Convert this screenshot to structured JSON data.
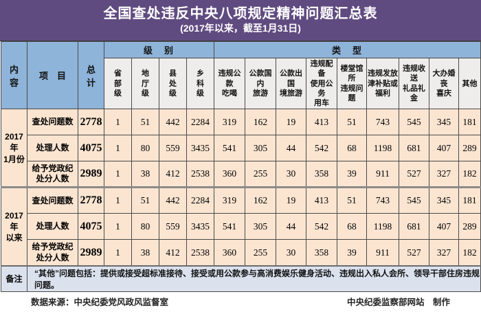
{
  "title": "全国查处违反中央八项规定精神问题汇总表",
  "subtitle": "(2017年以来，截至1月31日)",
  "colors": {
    "title_bg": "#604b80",
    "header_blue": "#8fb4d9",
    "subheader_bg": "#eeedeb",
    "data_cell_bg": "#fbe5d1",
    "side_column_bg": "#cfc3e1",
    "note_row_bg": "#dbe2ee",
    "border": "#4a4a4a"
  },
  "header": {
    "content": "内　容",
    "project": "项　目",
    "total": "总\n计",
    "level_group": "级　别",
    "type_group": "类　型",
    "levels": [
      "省\n部\n级",
      "地\n厅\n级",
      "县\n处\n级",
      "乡\n科\n级"
    ],
    "types": [
      "违规公款\n吃喝",
      "公款国内\n旅游",
      "公款出国\n境旅游",
      "违规配备\n使用公务\n用车",
      "楼堂馆所\n违规问题",
      "违规发放\n津补贴或\n福利",
      "违规收送\n礼品礼金",
      "大办婚丧\n喜庆",
      "其他"
    ]
  },
  "sections": [
    {
      "label": "2017年\n1月份",
      "rows": [
        {
          "label": "查处问题数",
          "total": "2778",
          "values": [
            "1",
            "51",
            "442",
            "2284",
            "319",
            "162",
            "19",
            "413",
            "51",
            "743",
            "545",
            "345",
            "181"
          ]
        },
        {
          "label": "处理人数",
          "total": "4075",
          "values": [
            "1",
            "80",
            "559",
            "3435",
            "541",
            "305",
            "44",
            "542",
            "68",
            "1198",
            "681",
            "407",
            "289"
          ]
        },
        {
          "label": "给予党政纪\n处分人数",
          "total": "2989",
          "values": [
            "1",
            "38",
            "412",
            "2538",
            "360",
            "255",
            "30",
            "358",
            "39",
            "911",
            "527",
            "327",
            "182"
          ]
        }
      ]
    },
    {
      "label": "2017年\n以来",
      "rows": [
        {
          "label": "查处问题数",
          "total": "2778",
          "values": [
            "1",
            "51",
            "442",
            "2284",
            "319",
            "162",
            "19",
            "413",
            "51",
            "743",
            "545",
            "345",
            "181"
          ]
        },
        {
          "label": "处理人数",
          "total": "4075",
          "values": [
            "1",
            "80",
            "559",
            "3435",
            "541",
            "305",
            "44",
            "542",
            "68",
            "1198",
            "681",
            "407",
            "289"
          ]
        },
        {
          "label": "给予党政纪\n处分人数",
          "total": "2989",
          "values": [
            "1",
            "38",
            "412",
            "2538",
            "360",
            "255",
            "30",
            "358",
            "39",
            "911",
            "527",
            "327",
            "182"
          ]
        }
      ]
    }
  ],
  "note": {
    "label": "备注",
    "text": "“其他”问题包括：提供或接受超标准接待、接受或用公款参与高消费娱乐健身活动、违规出入私人会所、领导干部住房违规问题。"
  },
  "footer": {
    "source": "数据来源：中央纪委党风政风监督室",
    "credit": "中央纪委监察部网站　制作"
  },
  "chart_data": {
    "type": "table",
    "title": "全国查处违反中央八项规定精神问题汇总表 (2017年以来，截至1月31日)",
    "column_groups": [
      "总计",
      "级别: 省部级/地厅级/县处级/乡科级",
      "类型: 违规公款吃喝/公款国内旅游/公款出国境旅游/违规配备使用公务用车/楼堂馆所违规问题/违规发放津补贴或福利/违规收送礼品礼金/大办婚丧喜庆/其他"
    ],
    "rows": [
      {
        "period": "2017年1月份",
        "metric": "查处问题数",
        "total": 2778,
        "levels": [
          1,
          51,
          442,
          2284
        ],
        "types": [
          319,
          162,
          19,
          413,
          51,
          743,
          545,
          345,
          181
        ]
      },
      {
        "period": "2017年1月份",
        "metric": "处理人数",
        "total": 4075,
        "levels": [
          1,
          80,
          559,
          3435
        ],
        "types": [
          541,
          305,
          44,
          542,
          68,
          1198,
          681,
          407,
          289
        ]
      },
      {
        "period": "2017年1月份",
        "metric": "给予党政纪处分人数",
        "total": 2989,
        "levels": [
          1,
          38,
          412,
          2538
        ],
        "types": [
          360,
          255,
          30,
          358,
          39,
          911,
          527,
          327,
          182
        ]
      },
      {
        "period": "2017年以来",
        "metric": "查处问题数",
        "total": 2778,
        "levels": [
          1,
          51,
          442,
          2284
        ],
        "types": [
          319,
          162,
          19,
          413,
          51,
          743,
          545,
          345,
          181
        ]
      },
      {
        "period": "2017年以来",
        "metric": "处理人数",
        "total": 4075,
        "levels": [
          1,
          80,
          559,
          3435
        ],
        "types": [
          541,
          305,
          44,
          542,
          68,
          1198,
          681,
          407,
          289
        ]
      },
      {
        "period": "2017年以来",
        "metric": "给予党政纪处分人数",
        "total": 2989,
        "levels": [
          1,
          38,
          412,
          2538
        ],
        "types": [
          360,
          255,
          30,
          358,
          39,
          911,
          527,
          327,
          182
        ]
      }
    ],
    "note": "“其他”问题包括：提供或接受超标准接待、接受或用公款参与高消费娱乐健身活动、违规出入私人会所、领导干部住房违规问题。",
    "source": "数据来源：中央纪委党风政风监督室",
    "credit": "中央纪委监察部网站 制作"
  }
}
